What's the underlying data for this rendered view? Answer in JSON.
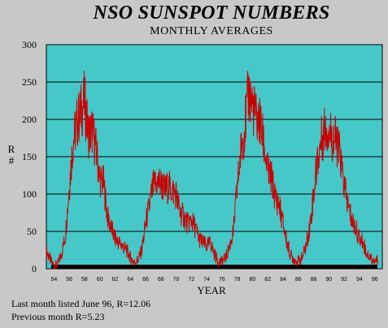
{
  "chart_data": {
    "type": "line",
    "title": "NSO SUNSPOT NUMBERS",
    "subtitle": "MONTHLY AVERAGES",
    "xlabel": "YEAR",
    "ylabel": "R #",
    "xlim": [
      1953,
      1997
    ],
    "ylim": [
      0,
      300
    ],
    "y_ticks": [
      0,
      50,
      100,
      150,
      200,
      250,
      300
    ],
    "x_ticks": [
      1954,
      1956,
      1958,
      1960,
      1962,
      1964,
      1966,
      1968,
      1970,
      1972,
      1974,
      1976,
      1978,
      1980,
      1982,
      1984,
      1986,
      1988,
      1990,
      1992,
      1994,
      1996
    ],
    "x_tick_labels": [
      "54",
      "56",
      "58",
      "60",
      "62",
      "64",
      "66",
      "68",
      "70",
      "72",
      "74",
      "76",
      "78",
      "80",
      "82",
      "84",
      "86",
      "88",
      "90",
      "92",
      "94",
      "96"
    ],
    "grid": "horizontal",
    "plot_background": "#46c8c8",
    "line_color": "#cc0000",
    "series": [
      {
        "x": [
          1953.0,
          1953.5,
          1954.0,
          1954.5,
          1955.0,
          1955.5,
          1956.0,
          1956.5,
          1957.0,
          1957.5,
          1958.0,
          1958.5,
          1959.0,
          1959.5,
          1960.0,
          1960.5,
          1961.0,
          1961.5,
          1962.0,
          1962.5,
          1963.0,
          1963.5,
          1964.0,
          1964.5,
          1965.0,
          1965.5,
          1966.0,
          1966.5,
          1967.0,
          1967.5,
          1968.0,
          1968.5,
          1969.0,
          1969.5,
          1970.0,
          1970.5,
          1971.0,
          1971.5,
          1972.0,
          1972.5,
          1973.0,
          1973.5,
          1974.0,
          1974.5,
          1975.0,
          1975.5,
          1976.0,
          1976.5,
          1977.0,
          1977.5,
          1978.0,
          1978.5,
          1979.0,
          1979.5,
          1980.0,
          1980.5,
          1981.0,
          1981.5,
          1982.0,
          1982.5,
          1983.0,
          1983.5,
          1984.0,
          1984.5,
          1985.0,
          1985.5,
          1986.0,
          1986.5,
          1987.0,
          1987.5,
          1988.0,
          1988.5,
          1989.0,
          1989.5,
          1990.0,
          1990.5,
          1991.0,
          1991.5,
          1992.0,
          1992.5,
          1993.0,
          1993.5,
          1994.0,
          1994.5,
          1995.0,
          1995.5,
          1996.0,
          1996.4
        ],
        "y": [
          25,
          12,
          4,
          6,
          20,
          45,
          110,
          170,
          195,
          210,
          225,
          180,
          185,
          160,
          120,
          115,
          70,
          55,
          40,
          35,
          30,
          25,
          15,
          8,
          12,
          25,
          60,
          85,
          110,
          115,
          115,
          105,
          110,
          105,
          100,
          75,
          70,
          60,
          65,
          55,
          40,
          35,
          30,
          35,
          20,
          10,
          10,
          15,
          30,
          50,
          110,
          160,
          190,
          235,
          220,
          200,
          195,
          165,
          130,
          120,
          95,
          85,
          60,
          35,
          18,
          12,
          10,
          15,
          30,
          55,
          100,
          145,
          170,
          190,
          185,
          175,
          170,
          150,
          110,
          85,
          65,
          55,
          40,
          35,
          20,
          15,
          8,
          12
        ]
      }
    ]
  },
  "notes": [
    "Last month listed June 96, R=12.06",
    "Previous month R=5.23"
  ]
}
